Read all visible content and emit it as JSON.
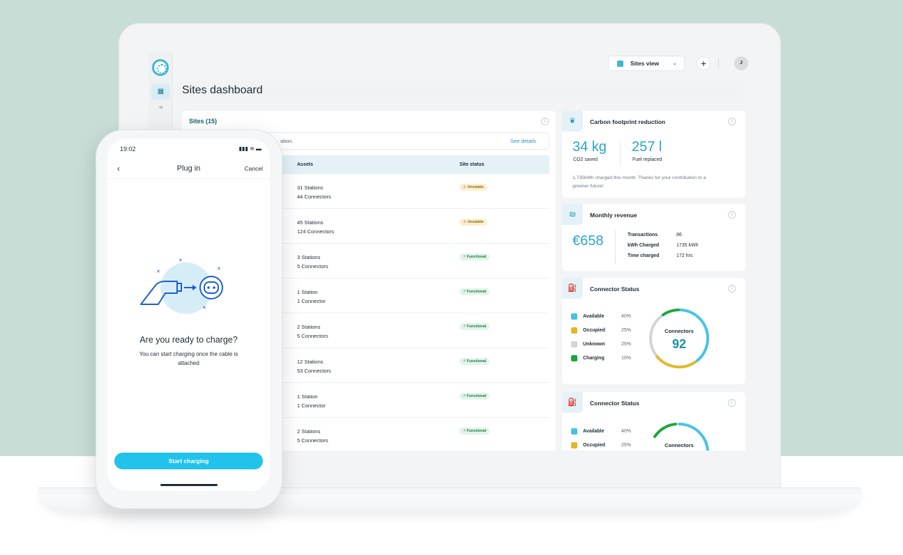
{
  "topbar": {
    "view_label": "Sites view",
    "plus_label": "+",
    "avatar_initial": "J"
  },
  "page": {
    "title": "Sites dashboard"
  },
  "sites": {
    "title": "Sites (15)",
    "notice_text": "ation.",
    "notice_link": "See details",
    "columns": {
      "assets": "Assets",
      "status": "Site status"
    },
    "rows": [
      {
        "stations": "31 Stations",
        "connectors": "44 Connectors",
        "status": "⚠ Unstable",
        "kind": "unstable"
      },
      {
        "stations": "45 Stations",
        "connectors": "124 Connectors",
        "status": "⚠ Unstable",
        "kind": "unstable"
      },
      {
        "stations": "3 Stations",
        "connectors": "5 Connectors",
        "status": "⚡ Functional",
        "kind": "functional"
      },
      {
        "stations": "1 Station",
        "connectors": "1 Connector",
        "status": "⚡ Functional",
        "kind": "functional"
      },
      {
        "stations": "2 Stations",
        "connectors": "5 Connectors",
        "status": "⚡ Functional",
        "kind": "functional"
      },
      {
        "stations": "12 Stations",
        "connectors": "53 Connectors",
        "status": "⚡ Functional",
        "kind": "functional"
      },
      {
        "stations": "1 Station",
        "connectors": "1 Connector",
        "status": "⚡ Functional",
        "kind": "functional"
      },
      {
        "stations": "2 Stations",
        "connectors": "5 Connectors",
        "status": "⚡ Functional",
        "kind": "functional"
      }
    ]
  },
  "carbon": {
    "title": "Carbon footprint reduction",
    "co2_value": "34 kg",
    "co2_label": "CO2 saved",
    "fuel_value": "257 l",
    "fuel_label": "Fuel replaced",
    "text_line1": "1,735kWh charged this month. Thanks for your contribution to a",
    "text_line2": "greener future!"
  },
  "revenue": {
    "title": "Monthly revenue",
    "amount": "€658",
    "rows": [
      {
        "k": "Transactions",
        "v": "86"
      },
      {
        "k": "kWh Charged",
        "v": "1735 kWh"
      },
      {
        "k": "Time charged",
        "v": "172 hrs"
      }
    ]
  },
  "connector_status": {
    "title": "Connector Status",
    "center_label": "Connectors",
    "center_value": "92",
    "legend": [
      {
        "name": "Available",
        "pct": "40%",
        "color": "#45c4e6",
        "share": 0.4
      },
      {
        "name": "Occupied",
        "pct": "25%",
        "color": "#e2b82a",
        "share": 0.25
      },
      {
        "name": "Unknown",
        "pct": "25%",
        "color": "#cfd5da",
        "share": 0.25
      },
      {
        "name": "Charging",
        "pct": "10%",
        "color": "#1aa83c",
        "share": 0.1
      }
    ]
  },
  "connector_status_2": {
    "title": "Connector Status",
    "center_label": "Connectors",
    "legend": [
      {
        "name": "Available",
        "pct": "40%",
        "color": "#45c4e6"
      },
      {
        "name": "Occupied",
        "pct": "25%",
        "color": "#e2b82a"
      }
    ]
  },
  "phone": {
    "time": "19:02",
    "status_icons": "▮▮▮ ≋ ▬",
    "back": "‹",
    "title": "Plug in",
    "cancel": "Cancel",
    "question": "Are you ready to charge?",
    "subtitle": "You can start charging once the cable is attached",
    "button": "Start charging"
  },
  "colors": {
    "accent": "#22c3ea",
    "brand_teal": "#155e6e",
    "background_top": "#c8ddd6"
  }
}
